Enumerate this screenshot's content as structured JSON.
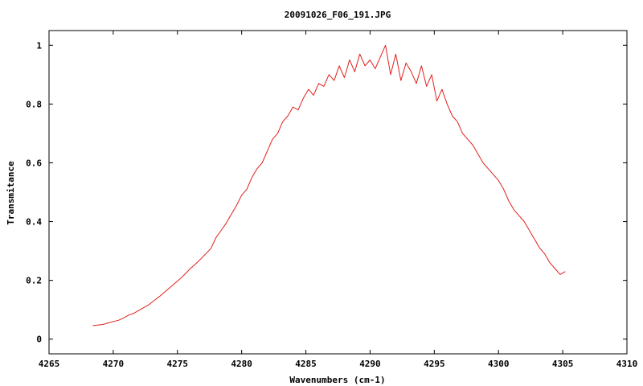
{
  "chart_data": {
    "type": "line",
    "title": "20091026_F06_191.JPG",
    "xlabel": "Wavenumbers (cm-1)",
    "ylabel": "Transmitance",
    "xlim": [
      4265,
      4310
    ],
    "ylim": [
      -0.05,
      1.05
    ],
    "xticks": [
      4265,
      4270,
      4275,
      4280,
      4285,
      4290,
      4295,
      4300,
      4305,
      4310
    ],
    "xtick_labels": [
      "4265",
      "4270",
      "4275",
      "4280",
      "4285",
      "4290",
      "4295",
      "4300",
      "4305",
      "4310"
    ],
    "yticks": [
      0,
      0.2,
      0.4,
      0.6,
      0.8,
      1
    ],
    "ytick_labels": [
      "0",
      "0.2",
      "0.4",
      "0.6",
      "0.8",
      "1"
    ],
    "grid": false,
    "legend": "none",
    "series": [
      {
        "color": "#e0201c",
        "x": [
          4268.4,
          4268.8,
          4269.2,
          4269.6,
          4270.0,
          4270.4,
          4270.8,
          4271.2,
          4271.6,
          4272.0,
          4272.4,
          4272.8,
          4273.2,
          4273.6,
          4274.0,
          4274.4,
          4274.8,
          4275.2,
          4275.6,
          4276.0,
          4276.4,
          4276.8,
          4277.2,
          4277.6,
          4278.0,
          4278.4,
          4278.8,
          4279.2,
          4279.6,
          4280.0,
          4280.4,
          4280.8,
          4281.2,
          4281.6,
          4282.0,
          4282.4,
          4282.8,
          4283.2,
          4283.6,
          4284.0,
          4284.4,
          4284.8,
          4285.2,
          4285.6,
          4286.0,
          4286.4,
          4286.8,
          4287.2,
          4287.6,
          4288.0,
          4288.4,
          4288.8,
          4289.2,
          4289.6,
          4290.0,
          4290.4,
          4290.8,
          4291.2,
          4291.6,
          4292.0,
          4292.4,
          4292.8,
          4293.2,
          4293.6,
          4294.0,
          4294.4,
          4294.8,
          4295.2,
          4295.6,
          4296.0,
          4296.4,
          4296.8,
          4297.2,
          4297.6,
          4298.0,
          4298.4,
          4298.8,
          4299.2,
          4299.6,
          4300.0,
          4300.4,
          4300.8,
          4301.2,
          4301.6,
          4302.0,
          4302.4,
          4302.8,
          4303.2,
          4303.6,
          4304.0,
          4304.4,
          4304.8,
          4305.2
        ],
        "values": [
          0.046,
          0.048,
          0.05,
          0.055,
          0.06,
          0.064,
          0.072,
          0.082,
          0.088,
          0.098,
          0.108,
          0.118,
          0.132,
          0.145,
          0.16,
          0.175,
          0.19,
          0.205,
          0.222,
          0.24,
          0.255,
          0.272,
          0.29,
          0.308,
          0.345,
          0.37,
          0.395,
          0.425,
          0.455,
          0.49,
          0.51,
          0.55,
          0.58,
          0.6,
          0.64,
          0.68,
          0.7,
          0.74,
          0.76,
          0.79,
          0.78,
          0.82,
          0.85,
          0.83,
          0.87,
          0.86,
          0.9,
          0.88,
          0.93,
          0.89,
          0.95,
          0.91,
          0.97,
          0.93,
          0.95,
          0.92,
          0.96,
          1.0,
          0.9,
          0.97,
          0.88,
          0.94,
          0.91,
          0.87,
          0.93,
          0.86,
          0.9,
          0.81,
          0.85,
          0.8,
          0.76,
          0.74,
          0.7,
          0.68,
          0.66,
          0.63,
          0.6,
          0.58,
          0.56,
          0.54,
          0.51,
          0.47,
          0.44,
          0.42,
          0.4,
          0.37,
          0.34,
          0.31,
          0.29,
          0.26,
          0.24,
          0.22,
          0.23
        ]
      }
    ]
  }
}
